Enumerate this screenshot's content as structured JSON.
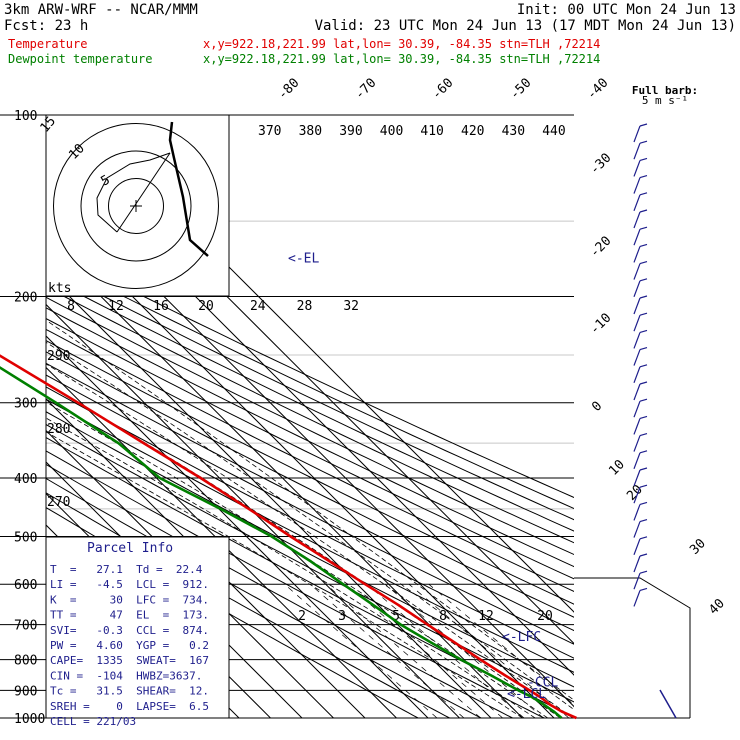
{
  "header": {
    "model": "3km ARW-WRF -- NCAR/MMM",
    "init": "Init: 00 UTC Mon 24 Jun 13",
    "fcst": "Fcst:    23 h",
    "valid": "Valid: 23 UTC Mon 24 Jun 13 (17 MDT Mon 24 Jun 13)",
    "lines": [
      {
        "name": "Temperature",
        "loc": "x,y=922.18,221.99   lat,lon= 30.39, -84.35   stn=TLH ,72214",
        "color": "#e00000"
      },
      {
        "name": "Dewpoint temperature",
        "loc": "x,y=922.18,221.99   lat,lon= 30.39, -84.35   stn=TLH ,72214",
        "color": "#008000"
      }
    ],
    "barb_legend": [
      "Full barb:",
      "5 m s⁻¹"
    ]
  },
  "parcel_info": {
    "title": "Parcel Info",
    "rows": [
      "T  =   27.1  Td =  22.4",
      "LI =   -4.5  LCL =  912.",
      "K  =     30  LFC =  734.",
      "TT =     47  EL  =  173.",
      "SVI=   -0.3  CCL =  874.",
      "PW =   4.60  YGP =   0.2",
      "CAPE=  1335  SWEAT=  167",
      "CIN =  -104  HWBZ=3637.",
      "Tc =   31.5  SHEAR=  12.",
      "SREH =    0  LAPSE=  6.5",
      "CELL = 221/03"
    ]
  },
  "chart_data": {
    "type": "line",
    "title": "",
    "xlabel": "",
    "ylabel": "",
    "ylim": [
      1000,
      100
    ],
    "pressure_levels": [
      100,
      200,
      300,
      400,
      500,
      600,
      700,
      800,
      900,
      1000
    ],
    "isotherm_labels": [
      -80,
      -70,
      -60,
      -50,
      -40,
      -30,
      -20,
      -10,
      0,
      10,
      20,
      30,
      40
    ],
    "theta_labels": [
      370,
      380,
      390,
      400,
      410,
      420,
      430,
      440
    ],
    "theta_left_labels": [
      290,
      280,
      270
    ],
    "mixing_ratio_labels": [
      2,
      3,
      5,
      8,
      12,
      20
    ],
    "hodograph": {
      "units": "kts",
      "speed_labels": [
        5,
        10,
        15
      ],
      "top_axis_labels": [
        8,
        12,
        16,
        20,
        24,
        28,
        32
      ]
    },
    "annotations": {
      "el": "<-EL",
      "lfc": "<-LFC",
      "ccl": "-CCL",
      "lcl": "<-LCL"
    },
    "series": [
      {
        "name": "Temperature",
        "color": "#e00000",
        "points": [
          [
            1000,
            27.1
          ],
          [
            975,
            24.5
          ],
          [
            950,
            23.0
          ],
          [
            925,
            22.4
          ],
          [
            900,
            21.0
          ],
          [
            850,
            18.0
          ],
          [
            800,
            15.2
          ],
          [
            750,
            12.5
          ],
          [
            700,
            9.5
          ],
          [
            650,
            6.5
          ],
          [
            600,
            2.5
          ],
          [
            550,
            -1.5
          ],
          [
            500,
            -6.0
          ],
          [
            450,
            -10.5
          ],
          [
            400,
            -16.0
          ],
          [
            350,
            -23.0
          ],
          [
            300,
            -31.0
          ],
          [
            250,
            -41.0
          ],
          [
            200,
            -52.0
          ],
          [
            175,
            -57.5
          ],
          [
            150,
            -60.0
          ],
          [
            130,
            -61.5
          ],
          [
            115,
            -63.5
          ],
          [
            100,
            -66.0
          ]
        ]
      },
      {
        "name": "Dewpoint temperature",
        "color": "#008000",
        "points": [
          [
            1000,
            22.4
          ],
          [
            975,
            22.0
          ],
          [
            950,
            21.0
          ],
          [
            925,
            19.8
          ],
          [
            900,
            17.5
          ],
          [
            850,
            13.5
          ],
          [
            800,
            9.0
          ],
          [
            750,
            5.0
          ],
          [
            700,
            1.0
          ],
          [
            650,
            -1.5
          ],
          [
            600,
            -4.5
          ],
          [
            550,
            -7.5
          ],
          [
            500,
            -12.0
          ],
          [
            450,
            -19.5
          ],
          [
            400,
            -29.0
          ],
          [
            350,
            -31.0
          ],
          [
            300,
            -38.0
          ],
          [
            250,
            -47.0
          ],
          [
            200,
            -60.0
          ],
          [
            180,
            -65.0
          ],
          [
            150,
            -70.0
          ],
          [
            130,
            -76.0
          ],
          [
            115,
            -78.5
          ],
          [
            100,
            -79.5
          ]
        ]
      }
    ],
    "wind_barb_column": "right"
  }
}
